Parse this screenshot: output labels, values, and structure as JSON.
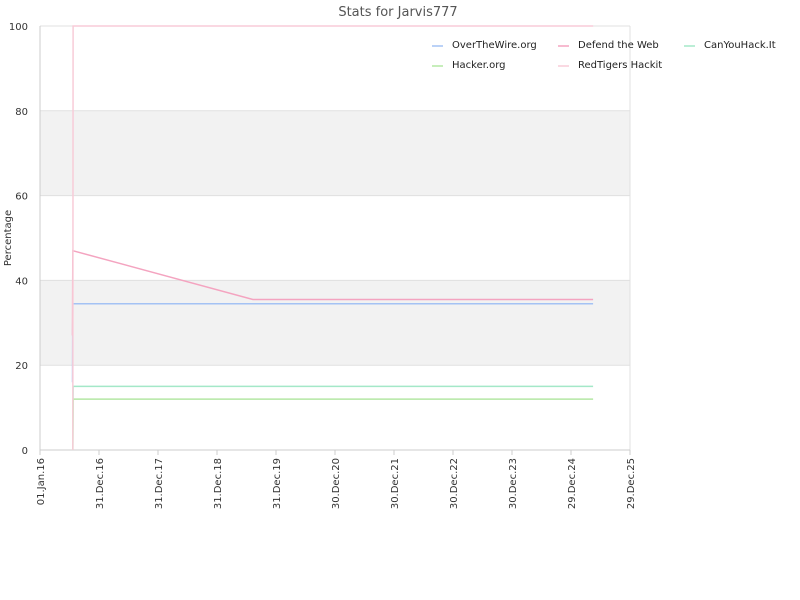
{
  "chart_data": {
    "type": "line",
    "title": "Stats for Jarvis777",
    "xlabel": "",
    "ylabel": "Percentage",
    "ylim": [
      0,
      100
    ],
    "yticks": [
      0,
      20,
      40,
      60,
      80,
      100
    ],
    "xlim": [
      "2016-01-01",
      "2025-12-29"
    ],
    "xticks": [
      {
        "date": "2016-01-01",
        "label": "01.Jan.16"
      },
      {
        "date": "2016-12-31",
        "label": "31.Dec.16"
      },
      {
        "date": "2017-12-31",
        "label": "31.Dec.17"
      },
      {
        "date": "2018-12-31",
        "label": "31.Dec.18"
      },
      {
        "date": "2019-12-31",
        "label": "31.Dec.19"
      },
      {
        "date": "2020-12-30",
        "label": "30.Dec.20"
      },
      {
        "date": "2021-12-30",
        "label": "30.Dec.21"
      },
      {
        "date": "2022-12-30",
        "label": "30.Dec.22"
      },
      {
        "date": "2023-12-30",
        "label": "30.Dec.23"
      },
      {
        "date": "2024-12-29",
        "label": "29.Dec.24"
      },
      {
        "date": "2025-12-29",
        "label": "29.Dec.25"
      }
    ],
    "grid": "horizontal",
    "banded_background": true,
    "legend_position": "top-right",
    "series": [
      {
        "name": "OverTheWire.org",
        "color": "#a4c2f4",
        "points": [
          [
            "2016-07-20",
            16
          ],
          [
            "2016-07-22",
            34.5
          ],
          [
            "2025-05-15",
            34.5
          ]
        ]
      },
      {
        "name": "Defend the Web",
        "color": "#f4a4c0",
        "points": [
          [
            "2016-07-20",
            27
          ],
          [
            "2016-07-22",
            47
          ],
          [
            "2019-08-10",
            35.5
          ],
          [
            "2025-05-15",
            35.5
          ]
        ]
      },
      {
        "name": "CanYouHack.It",
        "color": "#a4e8c8",
        "points": [
          [
            "2016-07-22",
            0
          ],
          [
            "2016-07-24",
            15
          ],
          [
            "2025-05-15",
            15
          ]
        ]
      },
      {
        "name": "Hacker.org",
        "color": "#b4e8a4",
        "points": [
          [
            "2016-07-22",
            0
          ],
          [
            "2016-07-24",
            12
          ],
          [
            "2025-05-15",
            12
          ]
        ]
      },
      {
        "name": "RedTigers Hackit",
        "color": "#f8ccd8",
        "points": [
          [
            "2016-07-22",
            0
          ],
          [
            "2016-07-24",
            100
          ],
          [
            "2025-05-15",
            100
          ]
        ]
      }
    ]
  }
}
